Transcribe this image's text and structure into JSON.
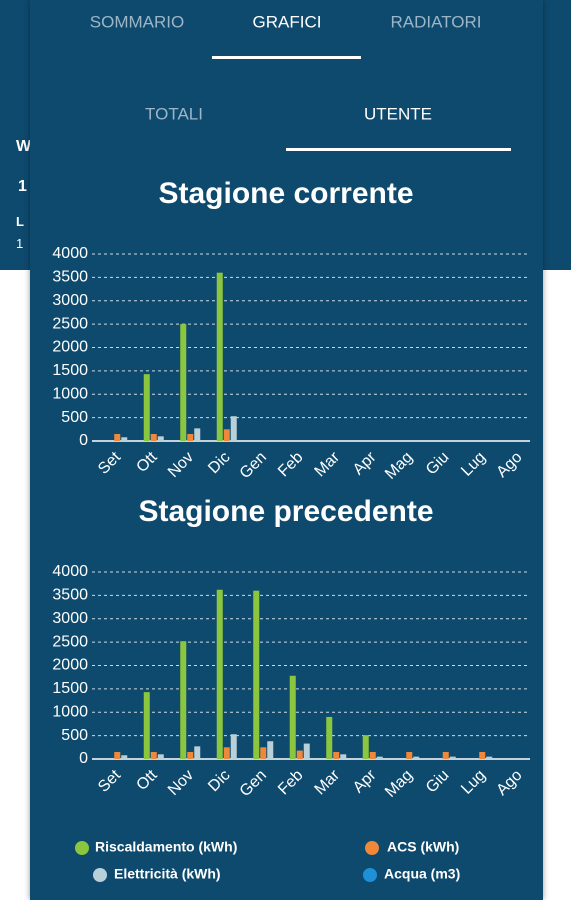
{
  "background": {
    "fragments": [
      "W",
      "1",
      "L",
      "1"
    ]
  },
  "tabs": [
    "SOMMARIO",
    "GRAFICI",
    "RADIATORI"
  ],
  "subtabs": [
    "TOTALI",
    "UTENTE"
  ],
  "chart_data": [
    {
      "type": "bar",
      "title": "Stagione corrente",
      "categories": [
        "Set",
        "Ott",
        "Nov",
        "Dic",
        "Gen",
        "Feb",
        "Mar",
        "Apr",
        "Mag",
        "Giu",
        "Lug",
        "Ago"
      ],
      "series": [
        {
          "name": "Riscaldamento (kWh)",
          "color": "#8cc63f",
          "values": [
            0,
            1430,
            2500,
            3600,
            null,
            null,
            null,
            null,
            null,
            null,
            null,
            null
          ]
        },
        {
          "name": "ACS (kWh)",
          "color": "#f0883a",
          "values": [
            150,
            150,
            150,
            250,
            null,
            null,
            null,
            null,
            null,
            null,
            null,
            null
          ]
        },
        {
          "name": "Elettricità (kWh)",
          "color": "#b9d0d8",
          "values": [
            80,
            100,
            270,
            530,
            null,
            null,
            null,
            null,
            null,
            null,
            null,
            null
          ]
        },
        {
          "name": "Acqua (m3)",
          "color": "#1e90d8",
          "values": [
            0,
            0,
            0,
            0,
            null,
            null,
            null,
            null,
            null,
            null,
            null,
            null
          ]
        }
      ],
      "ylim": [
        0,
        4000
      ],
      "yticks": [
        0,
        500,
        1000,
        1500,
        2000,
        2500,
        3000,
        3500,
        4000
      ],
      "grid": true
    },
    {
      "type": "bar",
      "title": "Stagione precedente",
      "categories": [
        "Set",
        "Ott",
        "Nov",
        "Dic",
        "Gen",
        "Feb",
        "Mar",
        "Apr",
        "Mag",
        "Giu",
        "Lug",
        "Ago"
      ],
      "series": [
        {
          "name": "Riscaldamento (kWh)",
          "color": "#8cc63f",
          "values": [
            0,
            1430,
            2520,
            3620,
            3600,
            1780,
            900,
            510,
            0,
            0,
            0,
            0
          ]
        },
        {
          "name": "ACS (kWh)",
          "color": "#f0883a",
          "values": [
            150,
            150,
            150,
            250,
            250,
            180,
            150,
            150,
            150,
            150,
            150,
            0
          ]
        },
        {
          "name": "Elettricità (kWh)",
          "color": "#b9d0d8",
          "values": [
            80,
            100,
            270,
            530,
            380,
            330,
            100,
            50,
            50,
            50,
            50,
            0
          ]
        },
        {
          "name": "Acqua (m3)",
          "color": "#1e90d8",
          "values": [
            0,
            0,
            0,
            0,
            0,
            0,
            0,
            0,
            0,
            0,
            0,
            0
          ]
        }
      ],
      "ylim": [
        0,
        4000
      ],
      "yticks": [
        0,
        500,
        1000,
        1500,
        2000,
        2500,
        3000,
        3500,
        4000
      ],
      "grid": true
    }
  ]
}
